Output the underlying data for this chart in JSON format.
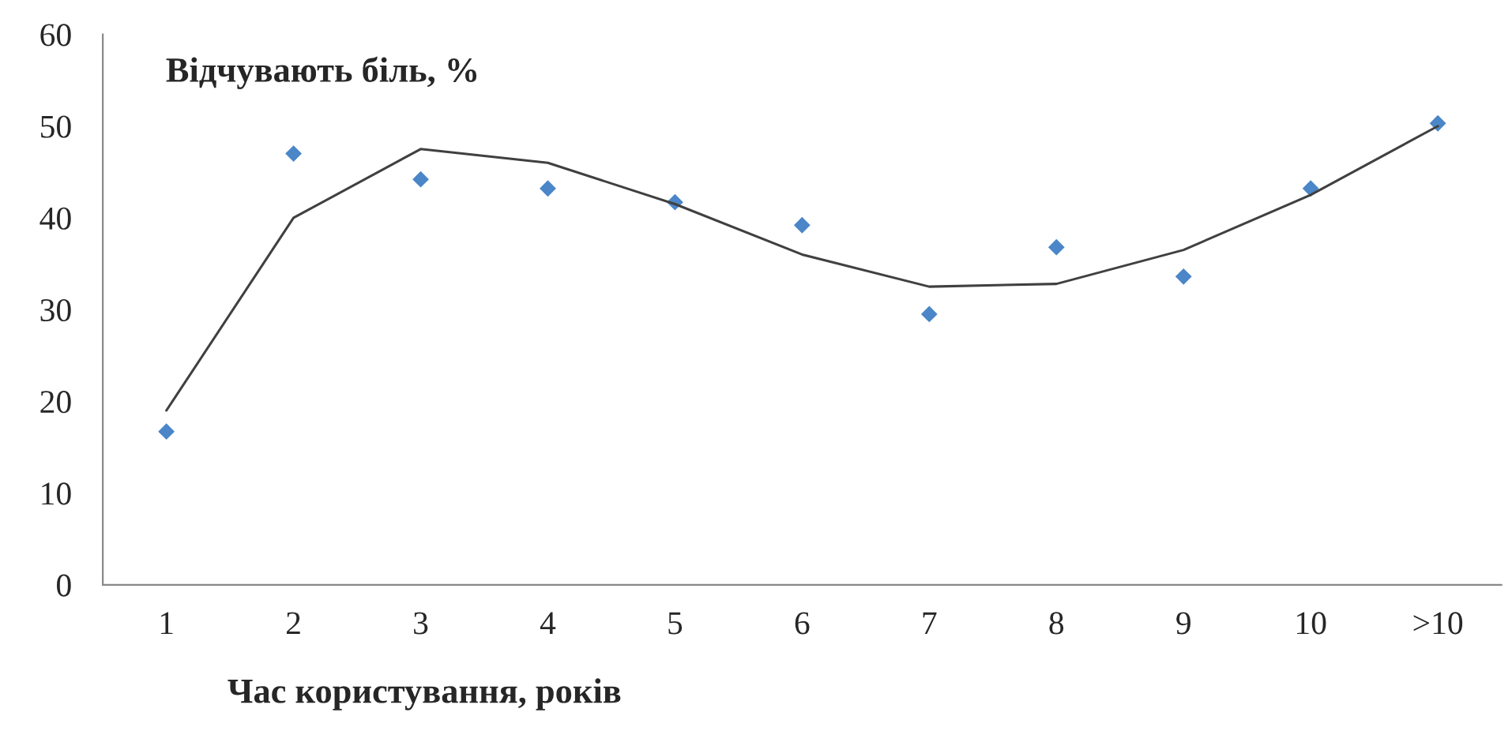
{
  "chart_data": {
    "type": "scatter",
    "ylabel": "Відчувають біль, %",
    "xlabel": "Час користування, років",
    "categories": [
      "1",
      "2",
      "3",
      "4",
      "5",
      "6",
      "7",
      "8",
      "9",
      "10",
      ">10"
    ],
    "series": [
      {
        "color": "#4a86c8",
        "marker": "diamond",
        "values": [
          16.7,
          47,
          44.2,
          43.2,
          41.7,
          39.2,
          29.5,
          36.8,
          33.6,
          43.2,
          50.3
        ]
      },
      {
        "type": "line",
        "color": "#404040",
        "marker": "none",
        "line_style": "solid",
        "x": [
          "1",
          "2",
          "3",
          "4",
          "5",
          "6",
          "7",
          "8",
          "9",
          "10",
          ">10"
        ],
        "values": [
          19,
          40,
          47.5,
          46,
          41.5,
          36,
          32.5,
          32.8,
          36.5,
          42.5,
          50
        ]
      }
    ],
    "ylim": [
      0,
      60
    ],
    "yticks": [
      0,
      10,
      20,
      30,
      40,
      50,
      60
    ],
    "grid": false,
    "legend": false
  }
}
